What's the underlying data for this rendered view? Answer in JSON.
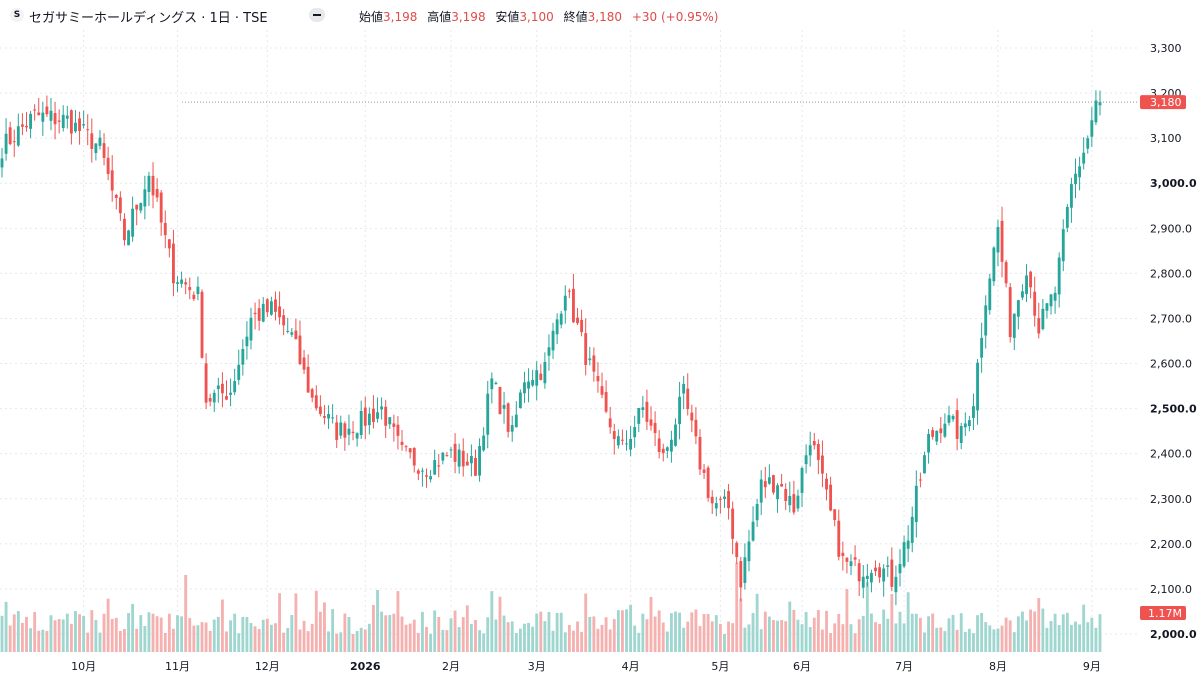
{
  "header": {
    "logo_letter": "S",
    "title": "セガサミーホールディングス · 1日 · TSE",
    "ohlc": [
      {
        "label": "始値",
        "value": "3,198"
      },
      {
        "label": "高値",
        "value": "3,198"
      },
      {
        "label": "安値",
        "value": "3,100"
      },
      {
        "label": "終値",
        "value": "3,180"
      }
    ],
    "change": "+30 (+0.95%)"
  },
  "colors": {
    "up": "#26a69a",
    "down": "#ef5350",
    "vol_up": "#9fd6cf",
    "vol_down": "#f4b1b0",
    "grid": "#e6e8ec"
  },
  "chart_data": {
    "type": "candlestick",
    "title": "",
    "xlabel": "",
    "ylabel": "",
    "ylim": [
      1960,
      3340
    ],
    "yticks": [
      {
        "value": 3300,
        "label": "3,300",
        "bold": false
      },
      {
        "value": 3200,
        "label": "3,200",
        "bold": false
      },
      {
        "value": 3100,
        "label": "3,100",
        "bold": false
      },
      {
        "value": 3000,
        "label": "3,000.0",
        "bold": true
      },
      {
        "value": 2900,
        "label": "2,900.0",
        "bold": false
      },
      {
        "value": 2800,
        "label": "2,800.0",
        "bold": false
      },
      {
        "value": 2700,
        "label": "2,700.0",
        "bold": false
      },
      {
        "value": 2600,
        "label": "2,600.0",
        "bold": false
      },
      {
        "value": 2500,
        "label": "2,500.0",
        "bold": true
      },
      {
        "value": 2400,
        "label": "2,400.0",
        "bold": false
      },
      {
        "value": 2300,
        "label": "2,300.0",
        "bold": false
      },
      {
        "value": 2200,
        "label": "2,200.0",
        "bold": false
      },
      {
        "value": 2100,
        "label": "2,100.0",
        "bold": false
      },
      {
        "value": 2000,
        "label": "2,000.0",
        "bold": true
      }
    ],
    "xticks": [
      {
        "bar": 20,
        "label": "10月",
        "bold": false
      },
      {
        "bar": 43,
        "label": "11月",
        "bold": false
      },
      {
        "bar": 65,
        "label": "12月",
        "bold": false
      },
      {
        "bar": 89,
        "label": "2026",
        "bold": true
      },
      {
        "bar": 110,
        "label": "2月",
        "bold": false
      },
      {
        "bar": 131,
        "label": "3月",
        "bold": false
      },
      {
        "bar": 154,
        "label": "4月",
        "bold": false
      },
      {
        "bar": 176,
        "label": "5月",
        "bold": false
      },
      {
        "bar": 196,
        "label": "6月",
        "bold": false
      },
      {
        "bar": 221,
        "label": "7月",
        "bold": false
      },
      {
        "bar": 244,
        "label": "8月",
        "bold": false
      },
      {
        "bar": 267,
        "label": "9月",
        "bold": false
      }
    ],
    "last_price": {
      "value": 3180,
      "label": "3,180"
    },
    "last_volume": {
      "label": "1.17M"
    },
    "waypoints": [
      {
        "bar": 0,
        "close": 3080
      },
      {
        "bar": 8,
        "close": 3150
      },
      {
        "bar": 16,
        "close": 3140
      },
      {
        "bar": 24,
        "close": 3080
      },
      {
        "bar": 30,
        "close": 2880
      },
      {
        "bar": 36,
        "close": 3020
      },
      {
        "bar": 42,
        "close": 2800
      },
      {
        "bar": 48,
        "close": 2750
      },
      {
        "bar": 50,
        "close": 2520
      },
      {
        "bar": 56,
        "close": 2540
      },
      {
        "bar": 61,
        "close": 2700
      },
      {
        "bar": 66,
        "close": 2720
      },
      {
        "bar": 71,
        "close": 2660
      },
      {
        "bar": 76,
        "close": 2520
      },
      {
        "bar": 82,
        "close": 2450
      },
      {
        "bar": 88,
        "close": 2470
      },
      {
        "bar": 93,
        "close": 2500
      },
      {
        "bar": 98,
        "close": 2400
      },
      {
        "bar": 104,
        "close": 2370
      },
      {
        "bar": 110,
        "close": 2400
      },
      {
        "bar": 116,
        "close": 2370
      },
      {
        "bar": 120,
        "close": 2560
      },
      {
        "bar": 125,
        "close": 2440
      },
      {
        "bar": 128,
        "close": 2570
      },
      {
        "bar": 133,
        "close": 2590
      },
      {
        "bar": 138,
        "close": 2770
      },
      {
        "bar": 143,
        "close": 2620
      },
      {
        "bar": 148,
        "close": 2480
      },
      {
        "bar": 152,
        "close": 2410
      },
      {
        "bar": 157,
        "close": 2500
      },
      {
        "bar": 162,
        "close": 2390
      },
      {
        "bar": 167,
        "close": 2530
      },
      {
        "bar": 171,
        "close": 2380
      },
      {
        "bar": 174,
        "close": 2290
      },
      {
        "bar": 178,
        "close": 2280
      },
      {
        "bar": 181,
        "close": 2120
      },
      {
        "bar": 186,
        "close": 2330
      },
      {
        "bar": 190,
        "close": 2340
      },
      {
        "bar": 194,
        "close": 2280
      },
      {
        "bar": 198,
        "close": 2440
      },
      {
        "bar": 202,
        "close": 2300
      },
      {
        "bar": 206,
        "close": 2160
      },
      {
        "bar": 210,
        "close": 2140
      },
      {
        "bar": 214,
        "close": 2160
      },
      {
        "bar": 218,
        "close": 2120
      },
      {
        "bar": 222,
        "close": 2220
      },
      {
        "bar": 227,
        "close": 2430
      },
      {
        "bar": 231,
        "close": 2480
      },
      {
        "bar": 235,
        "close": 2440
      },
      {
        "bar": 238,
        "close": 2520
      },
      {
        "bar": 241,
        "close": 2750
      },
      {
        "bar": 244,
        "close": 2900
      },
      {
        "bar": 247,
        "close": 2680
      },
      {
        "bar": 251,
        "close": 2820
      },
      {
        "bar": 254,
        "close": 2680
      },
      {
        "bar": 258,
        "close": 2760
      },
      {
        "bar": 262,
        "close": 2990
      },
      {
        "bar": 266,
        "close": 3100
      },
      {
        "bar": 268,
        "close": 3180
      }
    ]
  }
}
